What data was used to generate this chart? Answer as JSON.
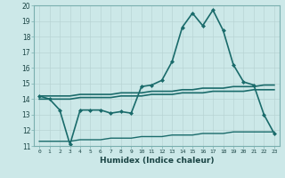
{
  "xlabel": "Humidex (Indice chaleur)",
  "ylabel": "",
  "xlim": [
    -0.5,
    23.5
  ],
  "ylim": [
    11,
    20
  ],
  "yticks": [
    11,
    12,
    13,
    14,
    15,
    16,
    17,
    18,
    19,
    20
  ],
  "xticks": [
    0,
    1,
    2,
    3,
    4,
    5,
    6,
    7,
    8,
    9,
    10,
    11,
    12,
    13,
    14,
    15,
    16,
    17,
    18,
    19,
    20,
    21,
    22,
    23
  ],
  "bg_color": "#cce8e8",
  "grid_color": "#b8d4d4",
  "line_color": "#1a6b6b",
  "series": [
    {
      "x": [
        0,
        1,
        2,
        3,
        4,
        5,
        6,
        7,
        8,
        9,
        10,
        11,
        12,
        13,
        14,
        15,
        16,
        17,
        18,
        19,
        20,
        21,
        22,
        23
      ],
      "y": [
        14.2,
        14.0,
        13.3,
        11.1,
        13.3,
        13.3,
        13.3,
        13.1,
        13.2,
        13.1,
        14.8,
        14.9,
        15.2,
        16.4,
        18.6,
        19.5,
        18.7,
        19.7,
        18.4,
        16.2,
        15.1,
        14.9,
        13.0,
        11.8
      ],
      "marker": true,
      "linewidth": 1.2
    },
    {
      "x": [
        0,
        1,
        2,
        3,
        4,
        5,
        6,
        7,
        8,
        9,
        10,
        11,
        12,
        13,
        14,
        15,
        16,
        17,
        18,
        19,
        20,
        21,
        22,
        23
      ],
      "y": [
        14.2,
        14.2,
        14.2,
        14.2,
        14.3,
        14.3,
        14.3,
        14.3,
        14.4,
        14.4,
        14.4,
        14.5,
        14.5,
        14.5,
        14.6,
        14.6,
        14.7,
        14.7,
        14.7,
        14.8,
        14.8,
        14.8,
        14.9,
        14.9
      ],
      "marker": false,
      "linewidth": 1.2
    },
    {
      "x": [
        0,
        1,
        2,
        3,
        4,
        5,
        6,
        7,
        8,
        9,
        10,
        11,
        12,
        13,
        14,
        15,
        16,
        17,
        18,
        19,
        20,
        21,
        22,
        23
      ],
      "y": [
        14.0,
        14.0,
        14.0,
        14.0,
        14.1,
        14.1,
        14.1,
        14.1,
        14.2,
        14.2,
        14.2,
        14.3,
        14.3,
        14.3,
        14.4,
        14.4,
        14.4,
        14.5,
        14.5,
        14.5,
        14.5,
        14.6,
        14.6,
        14.6
      ],
      "marker": false,
      "linewidth": 1.2
    },
    {
      "x": [
        0,
        1,
        2,
        3,
        4,
        5,
        6,
        7,
        8,
        9,
        10,
        11,
        12,
        13,
        14,
        15,
        16,
        17,
        18,
        19,
        20,
        21,
        22,
        23
      ],
      "y": [
        11.3,
        11.3,
        11.3,
        11.3,
        11.4,
        11.4,
        11.4,
        11.5,
        11.5,
        11.5,
        11.6,
        11.6,
        11.6,
        11.7,
        11.7,
        11.7,
        11.8,
        11.8,
        11.8,
        11.9,
        11.9,
        11.9,
        11.9,
        11.9
      ],
      "marker": false,
      "linewidth": 1.0
    }
  ]
}
